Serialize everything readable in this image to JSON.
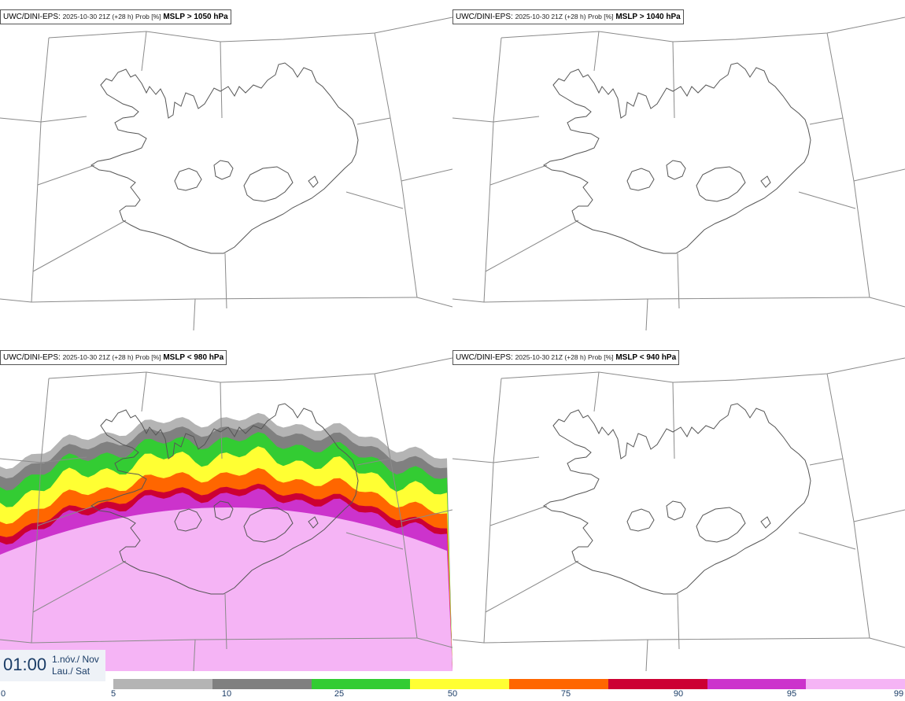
{
  "panels": [
    {
      "org": "UWC/DINI-EPS",
      "meta": "2025-10-30 21Z (+28 h) Prob [%]",
      "threshold": "MSLP > 1050 hPa",
      "shaded": false
    },
    {
      "org": "UWC/DINI-EPS",
      "meta": "2025-10-30 21Z (+28 h) Prob [%]",
      "threshold": "MSLP > 1040 hPa",
      "shaded": false
    },
    {
      "org": "UWC/DINI-EPS",
      "meta": "2025-10-30 21Z (+28 h) Prob [%]",
      "threshold": "MSLP < 980 hPa",
      "shaded": true
    },
    {
      "org": "UWC/DINI-EPS",
      "meta": "2025-10-30 21Z (+28 h) Prob [%]",
      "threshold": "MSLP < 940 hPa",
      "shaded": false
    }
  ],
  "clock": {
    "time": "01:00",
    "date_line1": "1.nóv./ Nov",
    "date_line2": "Lau./ Sat"
  },
  "colorbar": {
    "ticks": [
      "0",
      "5",
      "10",
      "25",
      "50",
      "75",
      "90",
      "95",
      "99"
    ],
    "colors": [
      "#b4b4b4",
      "#808080",
      "#33cc33",
      "#ffff33",
      "#ff6600",
      "#cc0033",
      "#cc33cc",
      "#f5b4f5"
    ]
  }
}
